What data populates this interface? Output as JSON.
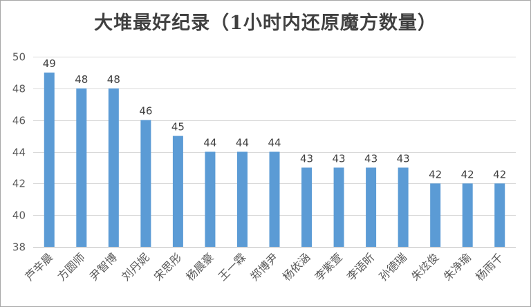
{
  "chart_data": {
    "type": "bar",
    "title": "大堆最好纪录（1小时内还原魔方数量）",
    "xlabel": "",
    "ylabel": "",
    "categories": [
      "芦辛晨",
      "方圆师",
      "尹智博",
      "刘丹妮",
      "宋思彤",
      "杨晨豪",
      "王一霖",
      "郑博尹",
      "杨依涵",
      "李紫萱",
      "李语昕",
      "孙德瑞",
      "朱炫俊",
      "朱净瑜",
      "杨雨千"
    ],
    "values": [
      49,
      48,
      48,
      46,
      45,
      44,
      44,
      44,
      43,
      43,
      43,
      43,
      42,
      42,
      42
    ],
    "ylim": [
      38,
      50
    ],
    "yticks": [
      38,
      40,
      42,
      44,
      46,
      48,
      50
    ],
    "grid": true,
    "data_labels": true,
    "bar_color": "#5b9bd5",
    "grid_color": "#d9d9d9",
    "legend": "none"
  }
}
